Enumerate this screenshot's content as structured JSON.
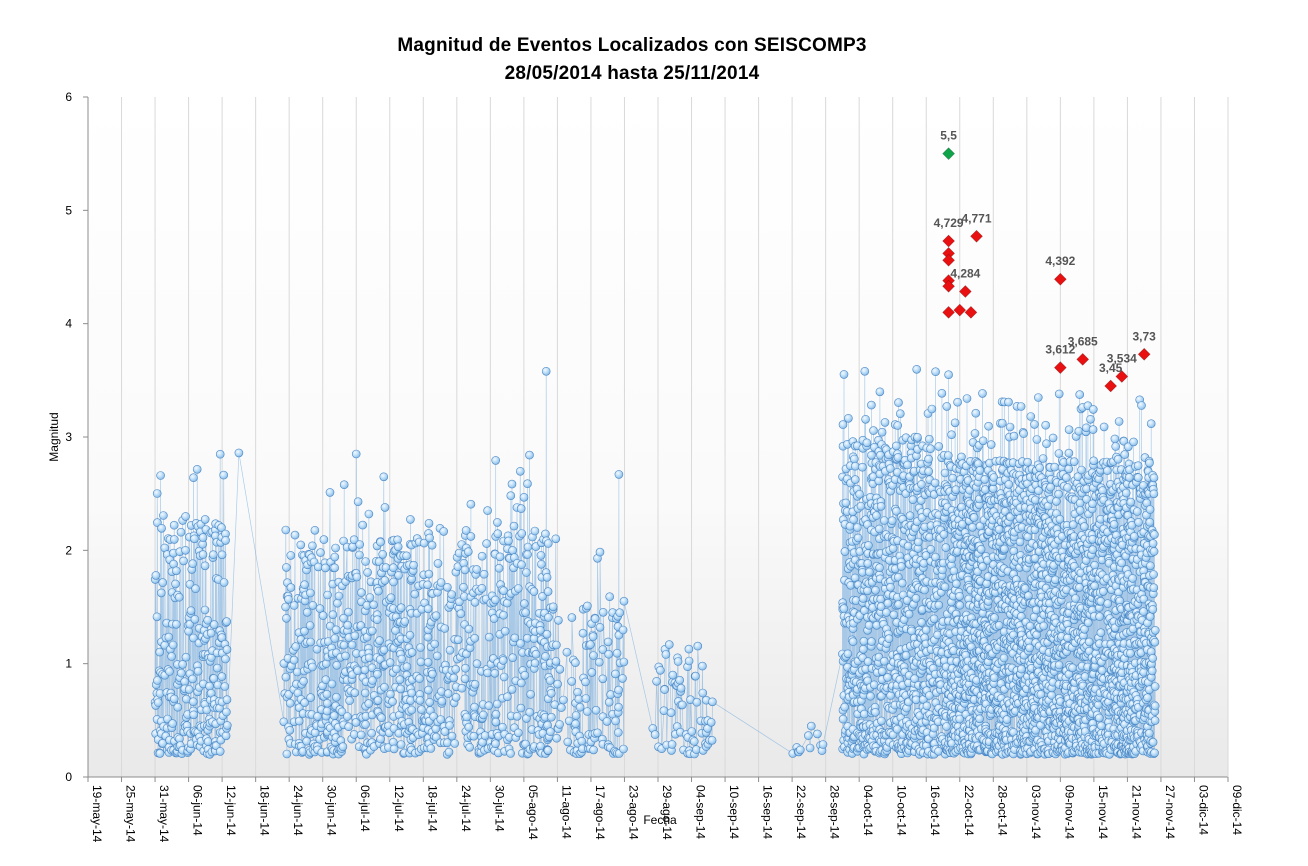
{
  "chart_data": {
    "type": "scatter",
    "title": "Magnitud  de Eventos  Localizados  con SEISCOMP3",
    "subtitle": "28/05/2014  hasta  25/11/2014",
    "xlabel": "Fecha",
    "ylabel": "Magnitud",
    "ylim": [
      0,
      6
    ],
    "y_ticks": [
      "0",
      "1",
      "2",
      "3",
      "4",
      "5",
      "6"
    ],
    "x_range": [
      "2014-05-19",
      "2014-12-09"
    ],
    "x_ticks": [
      "19-may-14",
      "25-may-14",
      "31-may-14",
      "06-jun-14",
      "12-jun-14",
      "18-jun-14",
      "24-jun-14",
      "30-jun-14",
      "06-jul-14",
      "12-jul-14",
      "18-jul-14",
      "24-jul-14",
      "30-jul-14",
      "05-ago-14",
      "11-ago-14",
      "17-ago-14",
      "23-ago-14",
      "29-ago-14",
      "04-sep-14",
      "10-sep-14",
      "16-sep-14",
      "22-sep-14",
      "28-sep-14",
      "04-oct-14",
      "10-oct-14",
      "16-oct-14",
      "22-oct-14",
      "28-oct-14",
      "03-nov-14",
      "09-nov-14",
      "15-nov-14",
      "21-nov-14",
      "27-nov-14",
      "03-dic-14",
      "09-dic-14"
    ],
    "x_tick_dates": [
      "2014-05-19",
      "2014-05-25",
      "2014-05-31",
      "2014-06-06",
      "2014-06-12",
      "2014-06-18",
      "2014-06-24",
      "2014-06-30",
      "2014-07-06",
      "2014-07-12",
      "2014-07-18",
      "2014-07-24",
      "2014-07-30",
      "2014-08-05",
      "2014-08-11",
      "2014-08-17",
      "2014-08-23",
      "2014-08-29",
      "2014-09-04",
      "2014-09-10",
      "2014-09-16",
      "2014-09-22",
      "2014-09-28",
      "2014-10-04",
      "2014-10-10",
      "2014-10-16",
      "2014-10-22",
      "2014-10-28",
      "2014-11-03",
      "2014-11-09",
      "2014-11-15",
      "2014-11-21",
      "2014-11-27",
      "2014-12-03",
      "2014-12-09"
    ],
    "grid": "vertical",
    "legend": "none",
    "colors": {
      "events": "#a9d3f5",
      "events_edge": "#4a86c4",
      "events_line": "#6aa6dc",
      "large": "#e81010",
      "max": "#0fa34a",
      "label": "#555555",
      "grid": "#d9d9d9",
      "background_bottom": "#ececec"
    },
    "event_clusters": [
      {
        "start": "2014-05-31",
        "end": "2014-06-13",
        "count": 280,
        "max_typical": 2.3
      },
      {
        "start": "2014-06-23",
        "end": "2014-07-16",
        "count": 450,
        "max_typical": 2.1
      },
      {
        "start": "2014-07-15",
        "end": "2014-08-10",
        "count": 420,
        "max_typical": 2.2
      },
      {
        "start": "2014-08-09",
        "end": "2014-08-23",
        "count": 130,
        "max_typical": 1.6
      },
      {
        "start": "2014-08-28",
        "end": "2014-09-08",
        "count": 70,
        "max_typical": 1.2
      },
      {
        "start": "2014-09-22",
        "end": "2014-09-28",
        "count": 12,
        "max_typical": 0.6
      },
      {
        "start": "2014-10-01",
        "end": "2014-10-20",
        "count": 900,
        "max_typical": 3.0
      },
      {
        "start": "2014-10-20",
        "end": "2014-11-26",
        "count": 2600,
        "max_typical": 2.8
      }
    ],
    "notable_points": [
      {
        "x": "2014-08-09",
        "y": 3.58
      },
      {
        "x": "2014-06-15",
        "y": 2.86
      },
      {
        "x": "2014-07-06",
        "y": 2.85
      },
      {
        "x": "2014-08-06",
        "y": 2.84
      },
      {
        "x": "2014-08-22",
        "y": 2.67
      },
      {
        "x": "2014-06-01",
        "y": 2.66
      },
      {
        "x": "2014-10-05",
        "y": 3.58
      },
      {
        "x": "2014-10-20",
        "y": 3.55
      }
    ],
    "markers": [
      {
        "x": "2014-10-20",
        "y": 5.5,
        "label": "5,5",
        "type": "max"
      },
      {
        "x": "2014-10-20",
        "y": 4.729,
        "label": "4,729",
        "type": "large"
      },
      {
        "x": "2014-10-25",
        "y": 4.771,
        "label": "4,771",
        "type": "large"
      },
      {
        "x": "2014-10-23",
        "y": 4.284,
        "label": "4,284",
        "type": "large"
      },
      {
        "x": "2014-11-09",
        "y": 4.392,
        "label": "4,392",
        "type": "large"
      },
      {
        "x": "2014-11-09",
        "y": 3.612,
        "label": "3,612",
        "type": "large"
      },
      {
        "x": "2014-11-13",
        "y": 3.685,
        "label": "3,685",
        "type": "large"
      },
      {
        "x": "2014-11-24",
        "y": 3.73,
        "label": "3,73",
        "type": "large"
      },
      {
        "x": "2014-11-20",
        "y": 3.534,
        "label": "3,534",
        "type": "large"
      },
      {
        "x": "2014-11-18",
        "y": 3.45,
        "label": "3,45",
        "type": "large"
      },
      {
        "x": "2014-10-20",
        "y": 4.62,
        "label": "",
        "type": "large"
      },
      {
        "x": "2014-10-20",
        "y": 4.56,
        "label": "",
        "type": "large"
      },
      {
        "x": "2014-10-20",
        "y": 4.38,
        "label": "",
        "type": "large"
      },
      {
        "x": "2014-10-20",
        "y": 4.33,
        "label": "",
        "type": "large"
      },
      {
        "x": "2014-10-20",
        "y": 4.1,
        "label": "",
        "type": "large"
      },
      {
        "x": "2014-10-22",
        "y": 4.12,
        "label": "",
        "type": "large"
      },
      {
        "x": "2014-10-24",
        "y": 4.1,
        "label": "",
        "type": "large"
      }
    ]
  }
}
